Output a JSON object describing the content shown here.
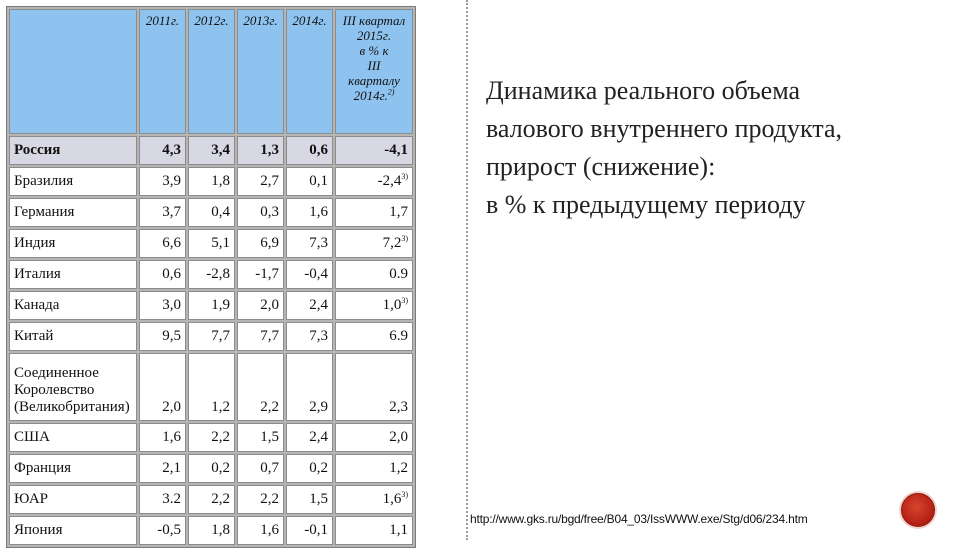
{
  "table": {
    "headers": [
      "2011г.",
      "2012г.",
      "2013г.",
      "2014г."
    ],
    "quarter_header": [
      "III квартал",
      "2015г.",
      "в % к",
      "III",
      "кварталу",
      "2014г."
    ],
    "quarter_header_note": "2)",
    "rows": [
      {
        "country": "Россия",
        "values": [
          "4,3",
          "3,4",
          "1,3",
          "0,6",
          "-4,1"
        ],
        "note": ""
      },
      {
        "country": "Бразилия",
        "values": [
          "3,9",
          "1,8",
          "2,7",
          "0,1",
          "-2,4"
        ],
        "note": "3)"
      },
      {
        "country": "Германия",
        "values": [
          "3,7",
          "0,4",
          "0,3",
          "1,6",
          "1,7"
        ],
        "note": ""
      },
      {
        "country": "Индия",
        "values": [
          "6,6",
          "5,1",
          "6,9",
          "7,3",
          "7,2"
        ],
        "note": "3)"
      },
      {
        "country": "Италия",
        "values": [
          "0,6",
          "-2,8",
          "-1,7",
          "-0,4",
          "0.9"
        ],
        "note": ""
      },
      {
        "country": "Канада",
        "values": [
          "3,0",
          "1,9",
          "2,0",
          "2,4",
          "1,0"
        ],
        "note": "3)"
      },
      {
        "country": "Китай",
        "values": [
          "9,5",
          "7,7",
          "7,7",
          "7,3",
          "6.9"
        ],
        "note": ""
      },
      {
        "country_lines": [
          "Соединенное",
          "Королевство",
          "(Великобритания)"
        ],
        "values": [
          "2,0",
          "1,2",
          "2,2",
          "2,9",
          "2,3"
        ],
        "note": ""
      },
      {
        "country": "США",
        "values": [
          "1,6",
          "2,2",
          "1,5",
          "2,4",
          "2,0"
        ],
        "note": ""
      },
      {
        "country": "Франция",
        "values": [
          "2,1",
          "0,2",
          "0,7",
          "0,2",
          "1,2"
        ],
        "note": ""
      },
      {
        "country": "ЮАР",
        "values": [
          "3.2",
          "2,2",
          "2,2",
          "1,5",
          "1,6"
        ],
        "note": "3)"
      },
      {
        "country": "Япония",
        "values": [
          "-0,5",
          "1,8",
          "1,6",
          "-0,1",
          "1,1"
        ],
        "note": ""
      }
    ]
  },
  "heading": {
    "lines": [
      "Динамика реального объема",
      "валового внутреннего продукта,",
      "прирост (снижение):"
    ],
    "subline": "в % к предыдущему периоду"
  },
  "source": "http://www.gks.ru/bgd/free/B04_03/IssWWW.exe/Stg/d06/234.htm",
  "colors": {
    "header_bg": "#8fc3ef",
    "highlight_row": "#d8d8e4",
    "badge": "#b21e13"
  }
}
